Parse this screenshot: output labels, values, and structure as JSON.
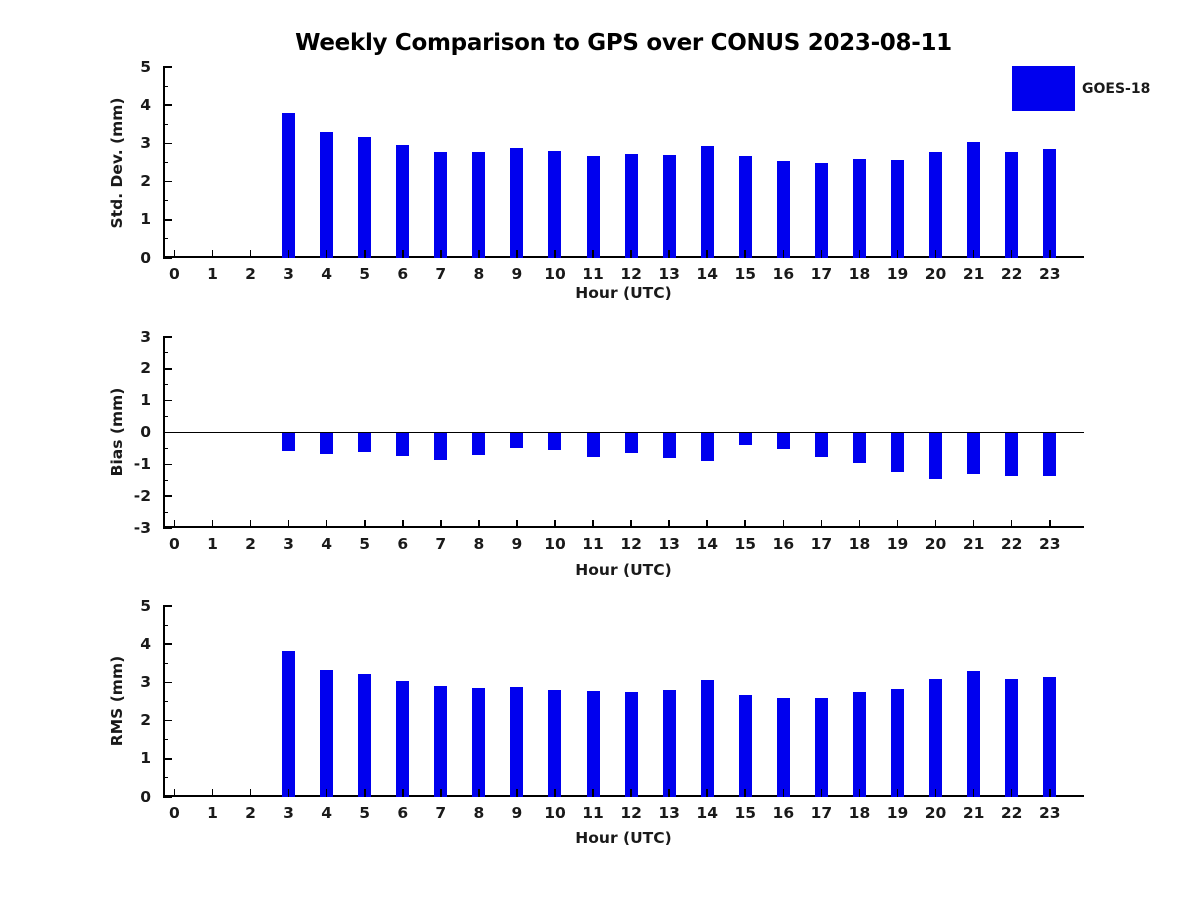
{
  "title": "Weekly Comparison to GPS over CONUS 2023-08-11",
  "legend": {
    "label": "GOES-18",
    "swatch_color": "#0000EE"
  },
  "colors": {
    "bar": "#0000EE",
    "axis": "#000000",
    "text": "#1a1a1a"
  },
  "x_axis": {
    "label": "Hour (UTC)",
    "ticks": [
      0,
      1,
      2,
      3,
      4,
      5,
      6,
      7,
      8,
      9,
      10,
      11,
      12,
      13,
      14,
      15,
      16,
      17,
      18,
      19,
      20,
      21,
      22,
      23
    ]
  },
  "chart_data": [
    {
      "type": "bar",
      "name": "std-dev",
      "title": "Weekly Comparison to GPS over CONUS 2023-08-11",
      "xlabel": "Hour (UTC)",
      "ylabel": "Std. Dev. (mm)",
      "ylim": [
        0,
        5
      ],
      "yticks": [
        0,
        1,
        2,
        3,
        4,
        5
      ],
      "minor_tick_step": 0.5,
      "legend": [
        "GOES-18"
      ],
      "legend_position": "upper right, outside plot",
      "grid": false,
      "x": [
        3,
        4,
        5,
        6,
        7,
        8,
        9,
        10,
        11,
        12,
        13,
        14,
        15,
        16,
        17,
        18,
        19,
        20,
        21,
        22,
        23
      ],
      "values": [
        3.79,
        3.3,
        3.16,
        2.95,
        2.78,
        2.77,
        2.88,
        2.79,
        2.68,
        2.72,
        2.7,
        2.93,
        2.67,
        2.54,
        2.49,
        2.59,
        2.56,
        2.78,
        3.04,
        2.78,
        2.86
      ]
    },
    {
      "type": "bar",
      "name": "bias",
      "xlabel": "Hour (UTC)",
      "ylabel": "Bias (mm)",
      "ylim": [
        -3,
        3
      ],
      "yticks": [
        -3,
        -2,
        -1,
        0,
        1,
        2,
        3
      ],
      "minor_tick_step": 0.5,
      "zero_line": true,
      "grid": false,
      "x": [
        3,
        4,
        5,
        6,
        7,
        8,
        9,
        10,
        11,
        12,
        13,
        14,
        15,
        16,
        17,
        18,
        19,
        20,
        21,
        22,
        23
      ],
      "values": [
        -0.58,
        -0.66,
        -0.61,
        -0.73,
        -0.87,
        -0.7,
        -0.48,
        -0.55,
        -0.76,
        -0.64,
        -0.8,
        -0.88,
        -0.4,
        -0.52,
        -0.78,
        -0.95,
        -1.25,
        -1.47,
        -1.3,
        -1.37,
        -1.38
      ]
    },
    {
      "type": "bar",
      "name": "rms",
      "xlabel": "Hour (UTC)",
      "ylabel": "RMS (mm)",
      "ylim": [
        0,
        5
      ],
      "yticks": [
        0,
        1,
        2,
        3,
        4,
        5
      ],
      "minor_tick_step": 0.5,
      "grid": false,
      "x": [
        3,
        4,
        5,
        6,
        7,
        8,
        9,
        10,
        11,
        12,
        13,
        14,
        15,
        16,
        17,
        18,
        19,
        20,
        21,
        22,
        23
      ],
      "values": [
        3.81,
        3.33,
        3.21,
        3.03,
        2.9,
        2.85,
        2.89,
        2.8,
        2.77,
        2.76,
        2.79,
        3.05,
        2.66,
        2.59,
        2.6,
        2.74,
        2.82,
        3.1,
        3.29,
        3.08,
        3.15
      ]
    }
  ]
}
